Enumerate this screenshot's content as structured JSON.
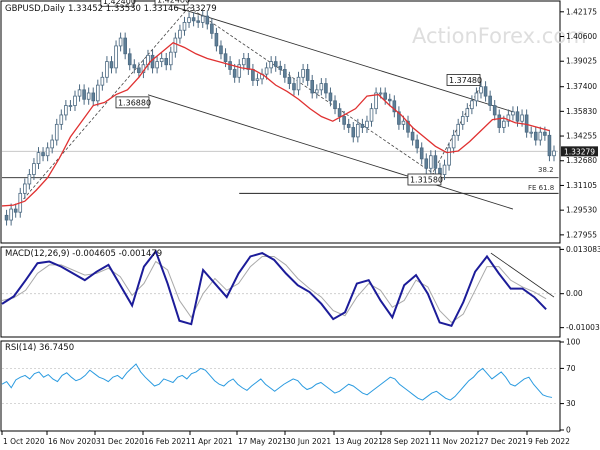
{
  "chart_data": {
    "type": "candlestick",
    "symbol": "GBPUSD",
    "timeframe": "Daily",
    "ohlc_label": "1.33452 1.33530 1.33146 1.33279",
    "last_price": 1.33279,
    "last_price_label": "1.33279",
    "watermark": "ActionForex.com",
    "x_ticks": [
      "1 Oct 2020",
      "16 Nov 2020",
      "31 Dec 2020",
      "16 Feb 2021",
      "1 Apr 2021",
      "17 May 2021",
      "30 Jun 2021",
      "13 Aug 2021",
      "28 Sep 2021",
      "11 Nov 2021",
      "27 Dec 2021",
      "9 Feb 2022"
    ],
    "price_panel": {
      "ylim": [
        1.275,
        1.428
      ],
      "y_ticks": [
        "1.42175",
        "1.40600",
        "1.39025",
        "1.37400",
        "1.35830",
        "1.34255",
        "1.32680",
        "1.31105",
        "1.29530",
        "1.27955"
      ],
      "close_path": [
        [
          0,
          1.292
        ],
        [
          5,
          1.289
        ],
        [
          10,
          1.296
        ],
        [
          15,
          1.294
        ],
        [
          20,
          1.306
        ],
        [
          25,
          1.312
        ],
        [
          30,
          1.318
        ],
        [
          35,
          1.325
        ],
        [
          40,
          1.332
        ],
        [
          45,
          1.33
        ],
        [
          50,
          1.335
        ],
        [
          55,
          1.34
        ],
        [
          60,
          1.35
        ],
        [
          65,
          1.356
        ],
        [
          70,
          1.362
        ],
        [
          75,
          1.362
        ],
        [
          80,
          1.368
        ],
        [
          85,
          1.372
        ],
        [
          90,
          1.366
        ],
        [
          95,
          1.37
        ],
        [
          100,
          1.365
        ],
        [
          105,
          1.375
        ],
        [
          110,
          1.38
        ],
        [
          115,
          1.39
        ],
        [
          120,
          1.386
        ],
        [
          125,
          1.4
        ],
        [
          130,
          1.405
        ],
        [
          135,
          1.395
        ],
        [
          140,
          1.388
        ],
        [
          145,
          1.386
        ],
        [
          150,
          1.383
        ],
        [
          155,
          1.388
        ],
        [
          160,
          1.394
        ],
        [
          165,
          1.386
        ],
        [
          170,
          1.39
        ],
        [
          175,
          1.392
        ],
        [
          180,
          1.388
        ],
        [
          185,
          1.396
        ],
        [
          190,
          1.405
        ],
        [
          195,
          1.41
        ],
        [
          200,
          1.415
        ],
        [
          205,
          1.418
        ],
        [
          210,
          1.416
        ],
        [
          215,
          1.415
        ],
        [
          220,
          1.419
        ],
        [
          225,
          1.414
        ],
        [
          230,
          1.408
        ],
        [
          235,
          1.4
        ],
        [
          240,
          1.395
        ],
        [
          245,
          1.39
        ],
        [
          250,
          1.385
        ],
        [
          255,
          1.38
        ],
        [
          260,
          1.388
        ],
        [
          265,
          1.392
        ],
        [
          270,
          1.385
        ],
        [
          275,
          1.378
        ],
        [
          280,
          1.379
        ],
        [
          285,
          1.382
        ],
        [
          290,
          1.386
        ],
        [
          295,
          1.39
        ],
        [
          300,
          1.387
        ],
        [
          305,
          1.385
        ],
        [
          310,
          1.38
        ],
        [
          315,
          1.376
        ],
        [
          320,
          1.372
        ],
        [
          325,
          1.38
        ],
        [
          330,
          1.385
        ],
        [
          335,
          1.378
        ],
        [
          340,
          1.37
        ],
        [
          345,
          1.372
        ],
        [
          350,
          1.376
        ],
        [
          355,
          1.37
        ],
        [
          360,
          1.365
        ],
        [
          365,
          1.36
        ],
        [
          370,
          1.355
        ],
        [
          375,
          1.35
        ],
        [
          380,
          1.348
        ],
        [
          385,
          1.342
        ],
        [
          390,
          1.35
        ],
        [
          395,
          1.348
        ],
        [
          400,
          1.352
        ],
        [
          405,
          1.36
        ],
        [
          410,
          1.37
        ],
        [
          415,
          1.37
        ],
        [
          420,
          1.366
        ],
        [
          425,
          1.365
        ],
        [
          430,
          1.358
        ],
        [
          435,
          1.35
        ],
        [
          440,
          1.352
        ],
        [
          445,
          1.345
        ],
        [
          450,
          1.34
        ],
        [
          455,
          1.335
        ],
        [
          460,
          1.328
        ],
        [
          465,
          1.322
        ],
        [
          470,
          1.33
        ],
        [
          475,
          1.322
        ],
        [
          480,
          1.318
        ],
        [
          485,
          1.324
        ],
        [
          490,
          1.335
        ],
        [
          495,
          1.343
        ],
        [
          500,
          1.35
        ],
        [
          505,
          1.355
        ],
        [
          510,
          1.36
        ],
        [
          515,
          1.365
        ],
        [
          520,
          1.37
        ],
        [
          525,
          1.374
        ],
        [
          530,
          1.368
        ],
        [
          535,
          1.362
        ],
        [
          540,
          1.356
        ],
        [
          545,
          1.348
        ],
        [
          550,
          1.352
        ],
        [
          555,
          1.356
        ],
        [
          560,
          1.358
        ],
        [
          565,
          1.352
        ],
        [
          570,
          1.356
        ],
        [
          575,
          1.345
        ],
        [
          580,
          1.345
        ],
        [
          585,
          1.34
        ],
        [
          590,
          1.345
        ],
        [
          595,
          1.343
        ],
        [
          600,
          1.33
        ],
        [
          605,
          1.333
        ]
      ],
      "ma_path": [
        [
          0,
          1.298
        ],
        [
          25,
          1.2985
        ],
        [
          50,
          1.301
        ],
        [
          75,
          1.308
        ],
        [
          100,
          1.316
        ],
        [
          125,
          1.328
        ],
        [
          150,
          1.342
        ],
        [
          175,
          1.352
        ],
        [
          200,
          1.362
        ],
        [
          225,
          1.364
        ],
        [
          250,
          1.369
        ],
        [
          275,
          1.372
        ],
        [
          300,
          1.38
        ],
        [
          325,
          1.39
        ],
        [
          350,
          1.396
        ],
        [
          375,
          1.402
        ],
        [
          400,
          1.399
        ],
        [
          425,
          1.395
        ],
        [
          450,
          1.392
        ],
        [
          475,
          1.39
        ],
        [
          500,
          1.388
        ],
        [
          525,
          1.386
        ],
        [
          550,
          1.385
        ],
        [
          575,
          1.381
        ],
        [
          600,
          1.375
        ],
        [
          625,
          1.371
        ],
        [
          650,
          1.366
        ],
        [
          675,
          1.36
        ],
        [
          700,
          1.355
        ],
        [
          725,
          1.352
        ],
        [
          750,
          1.356
        ],
        [
          775,
          1.36
        ],
        [
          800,
          1.368
        ],
        [
          825,
          1.369
        ],
        [
          850,
          1.362
        ],
        [
          875,
          1.356
        ],
        [
          900,
          1.348
        ],
        [
          925,
          1.342
        ],
        [
          950,
          1.336
        ],
        [
          975,
          1.332
        ],
        [
          1000,
          1.333
        ],
        [
          1025,
          1.339
        ],
        [
          1050,
          1.346
        ],
        [
          1075,
          1.353
        ],
        [
          1100,
          1.354
        ],
        [
          1125,
          1.351
        ],
        [
          1150,
          1.35
        ],
        [
          1175,
          1.348
        ],
        [
          1200,
          1.346
        ]
      ],
      "pivots": [
        {
          "label": "1.42400",
          "t": 150,
          "price": 1.424
        },
        {
          "label": "1.42480",
          "t": 205,
          "price": 1.4248
        },
        {
          "label": "1.36880",
          "t": 160,
          "price": 1.3688
        },
        {
          "label": "1.37480",
          "t": 525,
          "price": 1.3748
        },
        {
          "label": "1.31580",
          "t": 480,
          "price": 1.3158
        }
      ],
      "channel_upper": [
        [
          190,
          1.4248
        ],
        [
          560,
          1.358
        ]
      ],
      "channel_lower": [
        [
          160,
          1.3688
        ],
        [
          560,
          1.296
        ]
      ],
      "support_line": [
        [
          0,
          1.316
        ],
        [
          610,
          1.316
        ]
      ],
      "fe_line": [
        [
          260,
          1.306
        ],
        [
          610,
          1.306
        ]
      ],
      "annotations": [
        "38.2",
        "FE 61.8"
      ]
    },
    "macd_panel": {
      "label": "MACD(12,26,9) -0.004605 -0.001479",
      "ylim": [
        -0.0125,
        0.0135
      ],
      "y_ticks": [
        "0.013083",
        "0.00",
        "-0.01003"
      ],
      "macd_path": [
        [
          0,
          -0.003
        ],
        [
          30,
          -0.0008
        ],
        [
          60,
          0.004
        ],
        [
          90,
          0.009
        ],
        [
          120,
          0.0095
        ],
        [
          150,
          0.008
        ],
        [
          180,
          0.006
        ],
        [
          210,
          0.004
        ],
        [
          240,
          0.0065
        ],
        [
          270,
          0.0085
        ],
        [
          300,
          0.0025
        ],
        [
          330,
          -0.0035
        ],
        [
          360,
          0.008
        ],
        [
          390,
          0.0125
        ],
        [
          420,
          0.003
        ],
        [
          450,
          -0.008
        ],
        [
          480,
          -0.009
        ],
        [
          510,
          0.007
        ],
        [
          540,
          0.003
        ],
        [
          570,
          -0.001
        ],
        [
          600,
          0.006
        ],
        [
          630,
          0.011
        ],
        [
          660,
          0.012
        ],
        [
          690,
          0.01
        ],
        [
          720,
          0.006
        ],
        [
          750,
          0.0025
        ],
        [
          780,
          0.0005
        ],
        [
          810,
          -0.003
        ],
        [
          840,
          -0.0075
        ],
        [
          870,
          -0.0055
        ],
        [
          900,
          0.003
        ],
        [
          930,
          0.004
        ],
        [
          960,
          -0.002
        ],
        [
          990,
          -0.007
        ],
        [
          1020,
          0.0025
        ],
        [
          1050,
          0.0055
        ],
        [
          1080,
          0.0
        ],
        [
          1110,
          -0.0085
        ],
        [
          1140,
          -0.0095
        ],
        [
          1170,
          -0.0025
        ],
        [
          1200,
          0.0065
        ],
        [
          1230,
          0.011
        ],
        [
          1260,
          0.006
        ],
        [
          1290,
          0.0015
        ],
        [
          1320,
          0.0015
        ],
        [
          1350,
          -0.001
        ],
        [
          1380,
          -0.0046
        ]
      ],
      "signal_path": [
        [
          0,
          -0.002
        ],
        [
          30,
          -0.0012
        ],
        [
          60,
          0.001
        ],
        [
          90,
          0.006
        ],
        [
          120,
          0.0085
        ],
        [
          150,
          0.0085
        ],
        [
          180,
          0.007
        ],
        [
          210,
          0.0055
        ],
        [
          240,
          0.006
        ],
        [
          270,
          0.0075
        ],
        [
          300,
          0.005
        ],
        [
          330,
          -0.0005
        ],
        [
          360,
          0.003
        ],
        [
          390,
          0.0095
        ],
        [
          420,
          0.007
        ],
        [
          450,
          -0.002
        ],
        [
          480,
          -0.007
        ],
        [
          510,
          0.0
        ],
        [
          540,
          0.0045
        ],
        [
          570,
          0.001
        ],
        [
          600,
          0.003
        ],
        [
          630,
          0.008
        ],
        [
          660,
          0.011
        ],
        [
          690,
          0.011
        ],
        [
          720,
          0.0085
        ],
        [
          750,
          0.0045
        ],
        [
          780,
          0.0015
        ],
        [
          810,
          -0.001
        ],
        [
          840,
          -0.005
        ],
        [
          870,
          -0.0065
        ],
        [
          900,
          -0.001
        ],
        [
          930,
          0.003
        ],
        [
          960,
          0.001
        ],
        [
          990,
          -0.004
        ],
        [
          1020,
          -0.002
        ],
        [
          1050,
          0.004
        ],
        [
          1080,
          0.002
        ],
        [
          1110,
          -0.005
        ],
        [
          1140,
          -0.0085
        ],
        [
          1170,
          -0.006
        ],
        [
          1200,
          0.001
        ],
        [
          1230,
          0.008
        ],
        [
          1260,
          0.008
        ],
        [
          1290,
          0.004
        ],
        [
          1320,
          0.002
        ],
        [
          1350,
          0.0005
        ],
        [
          1380,
          -0.0015
        ]
      ],
      "trendline": [
        [
          1240,
          0.012
        ],
        [
          1400,
          -0.001
        ]
      ]
    },
    "rsi_panel": {
      "label": "RSI(14) 36.7450",
      "ylim": [
        0,
        100
      ],
      "y_ticks": [
        "100",
        "70",
        "30",
        "0"
      ],
      "levels": [
        70,
        30
      ],
      "values": [
        52,
        55,
        48,
        57,
        60,
        62,
        58,
        64,
        66,
        60,
        63,
        58,
        55,
        62,
        65,
        60,
        56,
        58,
        62,
        68,
        64,
        60,
        58,
        55,
        60,
        62,
        58,
        65,
        70,
        75,
        66,
        60,
        55,
        50,
        52,
        58,
        56,
        54,
        60,
        62,
        58,
        64,
        66,
        70,
        68,
        62,
        56,
        52,
        50,
        55,
        58,
        52,
        48,
        45,
        50,
        54,
        58,
        52,
        48,
        44,
        48,
        52,
        55,
        58,
        56,
        50,
        46,
        48,
        52,
        54,
        50,
        46,
        42,
        44,
        48,
        52,
        50,
        46,
        42,
        40,
        44,
        48,
        52,
        56,
        60,
        58,
        52,
        48,
        44,
        40,
        36,
        34,
        38,
        42,
        44,
        40,
        36,
        34,
        38,
        44,
        50,
        56,
        60,
        66,
        70,
        64,
        58,
        62,
        66,
        60,
        52,
        50,
        54,
        58,
        60,
        52,
        46,
        40,
        38,
        37
      ]
    }
  }
}
